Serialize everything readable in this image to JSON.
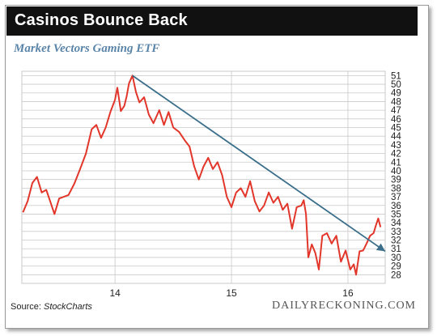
{
  "header": {
    "title": "Casinos Bounce Back"
  },
  "footer": {
    "source_prefix": "Source:",
    "source_name": "StockCharts",
    "brand": "DAILYRECKONING.COM"
  },
  "colors": {
    "price_line": "#e2362b",
    "trend_line": "#3a6e8a",
    "grid": "#c9c9c9",
    "title_bg": "#111111",
    "subtitle": "#5a84a8"
  },
  "chart_data": {
    "type": "line",
    "title": "Market Vectors Gaming ETF",
    "x_ticks": [
      {
        "label": "14",
        "value": 2014.0
      },
      {
        "label": "15",
        "value": 2015.0
      },
      {
        "label": "16",
        "value": 2016.0
      }
    ],
    "xlim": [
      2013.2,
      2016.32
    ],
    "ylim": [
      27,
      51.5
    ],
    "y_ticks": [
      28,
      29,
      30,
      31,
      32,
      33,
      34,
      35,
      36,
      37,
      38,
      39,
      40,
      41,
      42,
      43,
      44,
      45,
      46,
      47,
      48,
      49,
      50,
      51
    ],
    "grid": true,
    "series": [
      {
        "type": "price",
        "points": [
          [
            2013.21,
            35.2
          ],
          [
            2013.25,
            36.5
          ],
          [
            2013.29,
            38.6
          ],
          [
            2013.33,
            39.3
          ],
          [
            2013.37,
            37.5
          ],
          [
            2013.41,
            37.8
          ],
          [
            2013.45,
            36.2
          ],
          [
            2013.48,
            35.0
          ],
          [
            2013.52,
            36.8
          ],
          [
            2013.56,
            37.0
          ],
          [
            2013.6,
            37.2
          ],
          [
            2013.65,
            38.5
          ],
          [
            2013.7,
            40.2
          ],
          [
            2013.75,
            42.0
          ],
          [
            2013.8,
            44.8
          ],
          [
            2013.84,
            45.3
          ],
          [
            2013.88,
            43.8
          ],
          [
            2013.92,
            45.0
          ],
          [
            2013.96,
            46.8
          ],
          [
            2014.0,
            48.2
          ],
          [
            2014.02,
            49.6
          ],
          [
            2014.05,
            46.9
          ],
          [
            2014.08,
            47.5
          ],
          [
            2014.1,
            48.6
          ],
          [
            2014.12,
            50.1
          ],
          [
            2014.15,
            51.0
          ],
          [
            2014.18,
            49.1
          ],
          [
            2014.21,
            47.9
          ],
          [
            2014.25,
            48.5
          ],
          [
            2014.29,
            46.5
          ],
          [
            2014.33,
            45.5
          ],
          [
            2014.38,
            47.0
          ],
          [
            2014.42,
            45.3
          ],
          [
            2014.46,
            46.8
          ],
          [
            2014.5,
            45.0
          ],
          [
            2014.55,
            44.5
          ],
          [
            2014.6,
            43.5
          ],
          [
            2014.64,
            42.8
          ],
          [
            2014.68,
            40.5
          ],
          [
            2014.72,
            39.0
          ],
          [
            2014.76,
            40.5
          ],
          [
            2014.8,
            41.5
          ],
          [
            2014.84,
            40.2
          ],
          [
            2014.88,
            41.0
          ],
          [
            2014.92,
            39.5
          ],
          [
            2014.96,
            37.0
          ],
          [
            2015.0,
            35.8
          ],
          [
            2015.04,
            37.5
          ],
          [
            2015.08,
            38.0
          ],
          [
            2015.12,
            37.0
          ],
          [
            2015.16,
            38.8
          ],
          [
            2015.2,
            36.5
          ],
          [
            2015.24,
            35.3
          ],
          [
            2015.28,
            36.0
          ],
          [
            2015.32,
            37.5
          ],
          [
            2015.36,
            36.3
          ],
          [
            2015.4,
            37.0
          ],
          [
            2015.44,
            35.5
          ],
          [
            2015.48,
            36.2
          ],
          [
            2015.52,
            33.3
          ],
          [
            2015.56,
            35.8
          ],
          [
            2015.6,
            36.0
          ],
          [
            2015.62,
            36.6
          ],
          [
            2015.64,
            35.0
          ],
          [
            2015.66,
            30.0
          ],
          [
            2015.69,
            31.5
          ],
          [
            2015.72,
            30.5
          ],
          [
            2015.75,
            28.6
          ],
          [
            2015.78,
            32.5
          ],
          [
            2015.82,
            32.8
          ],
          [
            2015.86,
            31.6
          ],
          [
            2015.9,
            32.5
          ],
          [
            2015.94,
            29.5
          ],
          [
            2015.98,
            30.8
          ],
          [
            2016.02,
            28.6
          ],
          [
            2016.05,
            29.2
          ],
          [
            2016.07,
            28.0
          ],
          [
            2016.1,
            30.7
          ],
          [
            2016.13,
            30.8
          ],
          [
            2016.16,
            31.6
          ],
          [
            2016.19,
            32.5
          ],
          [
            2016.22,
            32.8
          ],
          [
            2016.24,
            33.7
          ],
          [
            2016.26,
            34.5
          ],
          [
            2016.28,
            33.5
          ]
        ]
      },
      {
        "type": "trend",
        "points": [
          [
            2014.15,
            51.0
          ],
          [
            2016.32,
            30.7
          ]
        ]
      }
    ]
  }
}
